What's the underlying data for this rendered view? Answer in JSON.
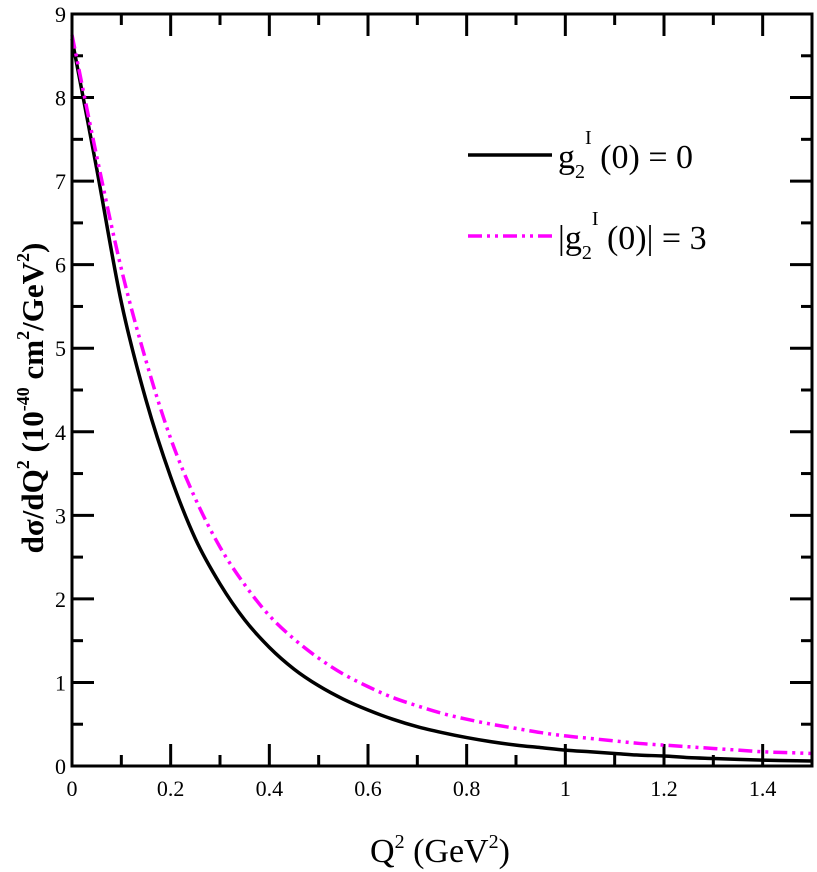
{
  "chart_data": {
    "type": "line",
    "xlabel": {
      "base": "Q",
      "sup1": "2",
      "rest": " (GeV",
      "sup2": "2",
      "close": ")"
    },
    "ylabel": {
      "p1": "dσ/dQ",
      "s1": "2",
      "p2": " (10",
      "s2": "-40",
      "p3": " cm",
      "s3": "2",
      "p4": "/GeV",
      "s4": "2",
      "p5": ")"
    },
    "xlim": [
      0,
      1.5
    ],
    "ylim": [
      0,
      9
    ],
    "x_ticks": [
      "0",
      "0.2",
      "0.4",
      "0.6",
      "0.8",
      "1",
      "1.2",
      "1.4"
    ],
    "x_tick_values": [
      0,
      0.2,
      0.4,
      0.6,
      0.8,
      1.0,
      1.2,
      1.4
    ],
    "y_ticks": [
      "0",
      "1",
      "2",
      "3",
      "4",
      "5",
      "6",
      "7",
      "8",
      "9"
    ],
    "y_tick_values": [
      0,
      1,
      2,
      3,
      4,
      5,
      6,
      7,
      8,
      9
    ],
    "legend_position": "top-right",
    "series": [
      {
        "name": "g2I(0) = 0",
        "legend": {
          "pre": "",
          "g": "g",
          "sub": "2",
          "sup": "I",
          "post": " (0) = 0"
        },
        "color": "#000000",
        "style": "solid",
        "x": [
          0,
          0.05,
          0.1,
          0.15,
          0.2,
          0.25,
          0.3,
          0.35,
          0.4,
          0.45,
          0.5,
          0.55,
          0.6,
          0.65,
          0.7,
          0.75,
          0.8,
          0.85,
          0.9,
          0.95,
          1.0,
          1.05,
          1.1,
          1.15,
          1.2,
          1.25,
          1.3,
          1.35,
          1.4,
          1.45,
          1.5
        ],
        "y": [
          8.7,
          7.15,
          5.55,
          4.38,
          3.46,
          2.72,
          2.18,
          1.75,
          1.42,
          1.16,
          0.96,
          0.8,
          0.67,
          0.56,
          0.47,
          0.4,
          0.34,
          0.29,
          0.25,
          0.22,
          0.19,
          0.17,
          0.15,
          0.13,
          0.12,
          0.1,
          0.09,
          0.08,
          0.07,
          0.065,
          0.06
        ]
      },
      {
        "name": "|g2I(0)| = 3",
        "legend": {
          "pre": "|",
          "g": "g",
          "sub": "2",
          "sup": "I",
          "post": " (0)| = 3"
        },
        "color": "#ff00ff",
        "style": "dash-dot-dot",
        "x": [
          0,
          0.05,
          0.1,
          0.15,
          0.2,
          0.25,
          0.3,
          0.35,
          0.4,
          0.45,
          0.5,
          0.55,
          0.6,
          0.65,
          0.7,
          0.75,
          0.8,
          0.85,
          0.9,
          0.95,
          1.0,
          1.05,
          1.1,
          1.15,
          1.2,
          1.25,
          1.3,
          1.35,
          1.4,
          1.45,
          1.5
        ],
        "y": [
          8.75,
          7.3,
          5.95,
          4.85,
          3.92,
          3.2,
          2.62,
          2.17,
          1.8,
          1.52,
          1.29,
          1.1,
          0.95,
          0.82,
          0.72,
          0.63,
          0.56,
          0.5,
          0.45,
          0.4,
          0.36,
          0.33,
          0.3,
          0.27,
          0.25,
          0.23,
          0.21,
          0.19,
          0.17,
          0.16,
          0.15
        ]
      }
    ]
  }
}
